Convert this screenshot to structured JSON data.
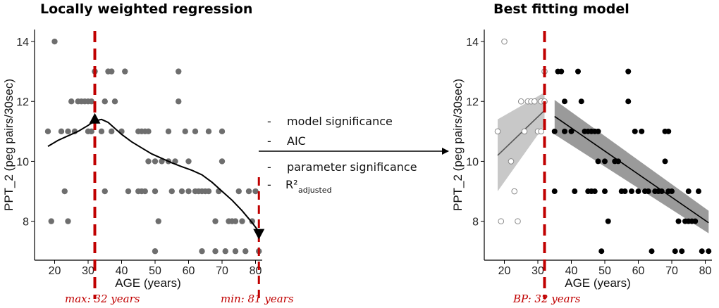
{
  "colors": {
    "point_loess": "#6e6e6e",
    "vline": "#c00000",
    "band_left": "#c8c8c8",
    "band_right": "#9a9a9a",
    "line": "#000000"
  },
  "left_panel": {
    "title": "Locally weighted regression",
    "xlabel": "AGE (years)",
    "ylabel": "PPT_2 (peg pairs/30sec)",
    "max_note": "max: 32 years",
    "min_note": "min: 81 years"
  },
  "right_panel": {
    "title": "Best fitting model",
    "xlabel": "AGE (years)",
    "ylabel": "PPT_2 (peg pairs/30sec)",
    "bp_note": "BP: 32 years"
  },
  "criteria": {
    "dash": "-",
    "items": [
      "model significance",
      "AIC",
      "parameter significance"
    ],
    "r2_main": "R²",
    "r2_sub": "adjusted"
  },
  "chart_data": [
    {
      "type": "scatter",
      "title": "Locally weighted regression",
      "xlabel": "AGE (years)",
      "ylabel": "PPT_2 (peg pairs/30sec)",
      "xlim": [
        14,
        82
      ],
      "ylim": [
        6.7,
        14.4
      ],
      "xticks": [
        20,
        30,
        40,
        50,
        60,
        70,
        80
      ],
      "yticks": [
        8,
        10,
        12,
        14
      ],
      "grid": false,
      "points": [
        [
          18,
          11
        ],
        [
          19,
          8
        ],
        [
          20,
          14
        ],
        [
          22,
          11
        ],
        [
          23,
          9
        ],
        [
          24,
          8
        ],
        [
          24,
          11
        ],
        [
          25,
          12
        ],
        [
          26,
          11
        ],
        [
          27,
          12
        ],
        [
          28,
          12
        ],
        [
          29,
          12
        ],
        [
          30,
          11
        ],
        [
          30,
          12
        ],
        [
          31,
          11
        ],
        [
          31,
          12
        ],
        [
          32,
          13
        ],
        [
          34,
          11
        ],
        [
          35,
          9
        ],
        [
          35,
          12
        ],
        [
          36,
          13
        ],
        [
          37,
          11
        ],
        [
          37,
          13
        ],
        [
          38,
          12
        ],
        [
          40,
          11
        ],
        [
          41,
          13
        ],
        [
          42,
          9
        ],
        [
          45,
          9
        ],
        [
          45,
          11
        ],
        [
          46,
          9
        ],
        [
          46,
          11
        ],
        [
          47,
          9
        ],
        [
          47,
          11
        ],
        [
          48,
          10
        ],
        [
          48,
          11
        ],
        [
          50,
          7
        ],
        [
          50,
          9
        ],
        [
          50,
          10
        ],
        [
          51,
          8
        ],
        [
          52,
          10
        ],
        [
          54,
          10
        ],
        [
          54,
          11
        ],
        [
          55,
          9
        ],
        [
          56,
          10
        ],
        [
          57,
          12
        ],
        [
          57,
          13
        ],
        [
          58,
          9
        ],
        [
          59,
          11
        ],
        [
          60,
          10
        ],
        [
          60,
          9
        ],
        [
          62,
          9
        ],
        [
          62,
          11
        ],
        [
          63,
          9
        ],
        [
          64,
          7
        ],
        [
          64,
          9
        ],
        [
          65,
          9
        ],
        [
          66,
          11
        ],
        [
          66,
          9
        ],
        [
          68,
          7
        ],
        [
          68,
          8
        ],
        [
          69,
          9
        ],
        [
          70,
          10
        ],
        [
          70,
          11
        ],
        [
          71,
          7
        ],
        [
          72,
          8
        ],
        [
          73,
          8
        ],
        [
          74,
          7
        ],
        [
          74,
          8
        ],
        [
          75,
          9
        ],
        [
          76,
          8
        ],
        [
          77,
          7
        ],
        [
          78,
          9
        ],
        [
          79,
          8
        ],
        [
          80,
          9
        ],
        [
          81,
          7
        ]
      ],
      "loess_curve": {
        "x": [
          18,
          21,
          24,
          27,
          30,
          32,
          34,
          36,
          38,
          40,
          43,
          46,
          49,
          52,
          55,
          58,
          61,
          64,
          67,
          70,
          73,
          76,
          79,
          81
        ],
        "y": [
          10.5,
          10.7,
          10.85,
          11.0,
          11.2,
          11.35,
          11.4,
          11.3,
          11.1,
          10.9,
          10.65,
          10.45,
          10.25,
          10.1,
          9.95,
          9.82,
          9.7,
          9.55,
          9.3,
          9.0,
          8.7,
          8.35,
          7.95,
          7.65
        ]
      },
      "maximum": {
        "x": 32,
        "y": 11.4
      },
      "minimum": {
        "x": 81,
        "y": 7.6
      },
      "vlines": [
        32,
        81
      ]
    },
    {
      "type": "scatter",
      "title": "Best fitting model",
      "xlabel": "AGE (years)",
      "ylabel": "PPT_2 (peg pairs/30sec)",
      "xlim": [
        14,
        82
      ],
      "ylim": [
        6.7,
        14.4
      ],
      "xticks": [
        20,
        30,
        40,
        50,
        60,
        70,
        80
      ],
      "yticks": [
        8,
        10,
        12,
        14
      ],
      "grid": false,
      "breakpoint": 32,
      "points_before": [
        [
          18,
          11
        ],
        [
          19,
          8
        ],
        [
          20,
          14
        ],
        [
          22,
          10
        ],
        [
          23,
          9
        ],
        [
          24,
          8
        ],
        [
          25,
          12
        ],
        [
          26,
          11
        ],
        [
          27,
          12
        ],
        [
          28,
          12
        ],
        [
          29,
          12
        ],
        [
          30,
          11
        ],
        [
          31,
          11
        ],
        [
          31,
          12
        ],
        [
          32,
          12
        ],
        [
          32,
          13
        ]
      ],
      "points_after": [
        [
          35,
          9
        ],
        [
          35,
          11
        ],
        [
          36,
          13
        ],
        [
          37,
          13
        ],
        [
          38,
          11
        ],
        [
          38,
          12
        ],
        [
          40,
          11
        ],
        [
          41,
          9
        ],
        [
          42,
          13
        ],
        [
          43,
          12
        ],
        [
          44,
          11
        ],
        [
          45,
          9
        ],
        [
          45,
          11
        ],
        [
          46,
          9
        ],
        [
          46,
          11
        ],
        [
          47,
          9
        ],
        [
          47,
          11
        ],
        [
          48,
          10
        ],
        [
          48,
          11
        ],
        [
          49,
          7
        ],
        [
          50,
          10
        ],
        [
          50,
          9
        ],
        [
          51,
          8
        ],
        [
          53,
          10
        ],
        [
          54,
          10
        ],
        [
          55,
          9
        ],
        [
          56,
          9
        ],
        [
          57,
          12
        ],
        [
          57,
          13
        ],
        [
          58,
          9
        ],
        [
          59,
          11
        ],
        [
          60,
          9
        ],
        [
          61,
          11
        ],
        [
          62,
          9
        ],
        [
          63,
          9
        ],
        [
          64,
          7
        ],
        [
          65,
          9
        ],
        [
          66,
          9
        ],
        [
          67,
          9
        ],
        [
          68,
          11
        ],
        [
          68,
          10
        ],
        [
          69,
          9
        ],
        [
          69,
          11
        ],
        [
          70,
          9
        ],
        [
          71,
          7
        ],
        [
          72,
          8
        ],
        [
          73,
          7
        ],
        [
          74,
          8
        ],
        [
          75,
          8
        ],
        [
          75,
          9
        ],
        [
          76,
          8
        ],
        [
          77,
          8
        ],
        [
          78,
          9
        ],
        [
          79,
          7
        ],
        [
          81,
          7
        ]
      ],
      "fit_before": {
        "x": [
          18,
          32
        ],
        "y": [
          10.2,
          11.7
        ],
        "ci_low": [
          9.0,
          11.2
        ],
        "ci_high": [
          11.4,
          12.3
        ]
      },
      "fit_after": {
        "x": [
          35,
          81
        ],
        "y": [
          11.5,
          7.95
        ],
        "ci_low": [
          10.9,
          7.6
        ],
        "ci_high": [
          12.05,
          8.35
        ]
      },
      "vlines": [
        32
      ]
    }
  ]
}
